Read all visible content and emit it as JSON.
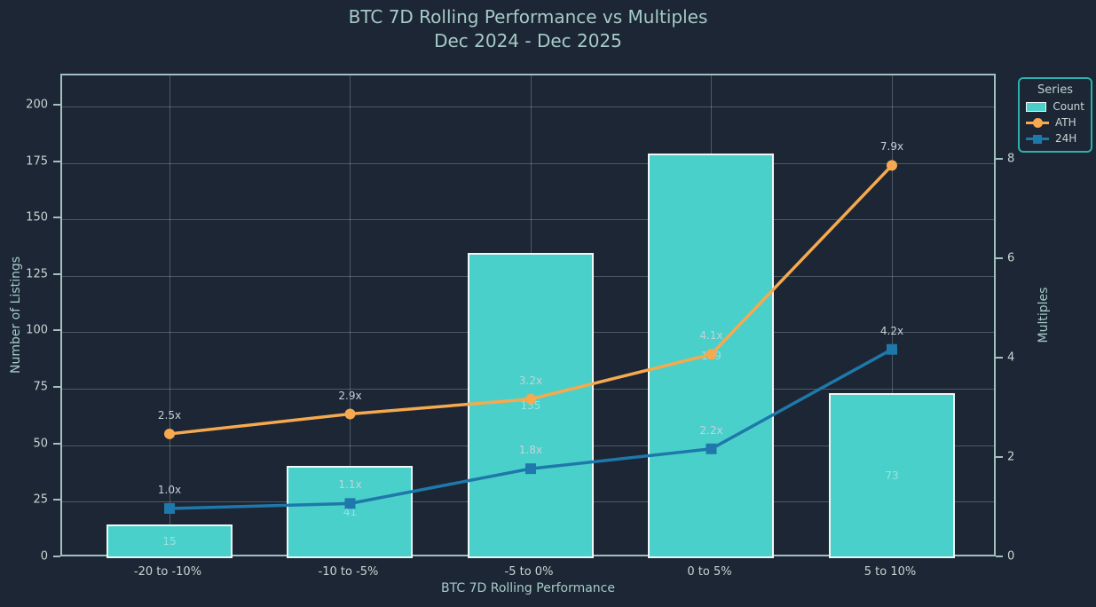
{
  "title": {
    "line1": "BTC 7D Rolling Performance vs Multiples",
    "line2": "Dec 2024 - Dec 2025"
  },
  "chart_data": {
    "type": "bar",
    "subtype": "combo-bar-line-dual-axis",
    "title": "BTC 7D Rolling Performance vs Multiples Dec 2024 - Dec 2025",
    "categories": [
      "-20 to -10%",
      "-10 to -5%",
      "-5 to 0%",
      "0 to 5%",
      "5 to 10%"
    ],
    "series": [
      {
        "name": "Count",
        "type": "bar",
        "axis": "left",
        "values": [
          15,
          41,
          135,
          179,
          73
        ],
        "value_labels": [
          "15",
          "41",
          "135",
          "179",
          "73"
        ],
        "color": "#4ad0ca",
        "edge_color": "#eef6f6"
      },
      {
        "name": "ATH",
        "type": "line",
        "axis": "right",
        "values": [
          2.5,
          2.9,
          3.2,
          4.1,
          7.9
        ],
        "value_labels": [
          "2.5x",
          "2.9x",
          "3.2x",
          "4.1x",
          "7.9x"
        ],
        "color": "#f6a94e",
        "marker": "circle"
      },
      {
        "name": "24H",
        "type": "line",
        "axis": "right",
        "values": [
          1.0,
          1.1,
          1.8,
          2.2,
          4.2
        ],
        "value_labels": [
          "1.0x",
          "1.1x",
          "1.8x",
          "2.2x",
          "4.2x"
        ],
        "color": "#1f78ab",
        "marker": "square"
      }
    ],
    "xlabel": "BTC 7D Rolling Performance",
    "ylabel_left": "Number of Listings",
    "ylabel_right": "Multiples",
    "yticks_left": [
      0,
      25,
      50,
      75,
      100,
      125,
      150,
      175,
      200
    ],
    "yticks_right": [
      0,
      2,
      4,
      6,
      8
    ],
    "ylim_left": [
      0,
      213.7
    ],
    "ylim_right": [
      0,
      9.71
    ],
    "grid": true,
    "legend": {
      "title": "Series",
      "position": "top-right",
      "entries": [
        "Count",
        "ATH",
        "24H"
      ]
    }
  },
  "colors": {
    "background": "#1c2634",
    "axis_frame": "#a3c0c0",
    "grid": "rgba(154,176,184,0.38)",
    "title_text": "#a6cbc8",
    "tick_text": "#c6d6d6",
    "bar_fill": "#4ad0ca",
    "bar_edge": "#eef6f6",
    "ath_line": "#f6a94e",
    "h24_line": "#1f78ab",
    "legend_border": "#2cb1ae"
  }
}
